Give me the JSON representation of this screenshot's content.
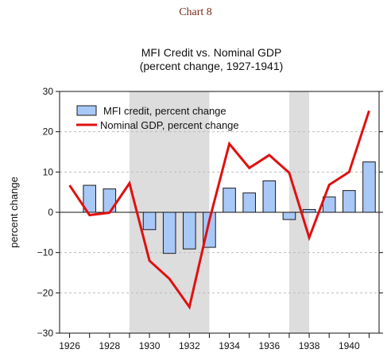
{
  "caption": "Chart 8",
  "chart_data": {
    "type": "bar",
    "title": "MFI Credit vs. Nominal GDP",
    "subtitle": "(percent change, 1927-1941)",
    "ylabel": "percent change",
    "xlabel": "",
    "xlim": [
      1925.5,
      1941.5
    ],
    "ylim": [
      -30,
      30
    ],
    "yticks": [
      -30,
      -20,
      -10,
      0,
      10,
      20,
      30
    ],
    "yticklabels": [
      "−30",
      "−20",
      "−10",
      "0",
      "10",
      "20",
      "30"
    ],
    "xticks": [
      1926,
      1928,
      1930,
      1932,
      1934,
      1936,
      1938,
      1940
    ],
    "xticklabels": [
      "1926",
      "1928",
      "1930",
      "1932",
      "1934",
      "1936",
      "1938",
      "1940"
    ],
    "shaded_periods": [
      [
        1929,
        1933
      ],
      [
        1937,
        1938
      ]
    ],
    "legend": "top-left",
    "grid": "horizontal dashed",
    "colors": {
      "bars": "#a8c8f8",
      "bar_edge": "#1a1a1a",
      "line": "#e01010",
      "shade": "#dddddd"
    },
    "series": [
      {
        "name": "MFI credit, percent change",
        "type": "bar",
        "x": [
          1927,
          1928,
          1929,
          1930,
          1931,
          1932,
          1933,
          1934,
          1935,
          1936,
          1937,
          1938,
          1939,
          1940,
          1941
        ],
        "values": [
          6.7,
          5.8,
          0,
          -4.3,
          -10.2,
          -9.1,
          -8.7,
          6.0,
          4.8,
          7.8,
          -1.8,
          0.7,
          3.8,
          5.4,
          12.5
        ]
      },
      {
        "name": "Nominal GDP, percent change",
        "type": "line",
        "x": [
          1926,
          1927,
          1928,
          1929,
          1930,
          1931,
          1932,
          1933,
          1934,
          1935,
          1936,
          1937,
          1938,
          1939,
          1940,
          1941
        ],
        "values": [
          6.7,
          -0.7,
          -0.1,
          7.2,
          -12.0,
          -16.5,
          -23.5,
          -2.0,
          17.0,
          11.0,
          14.2,
          9.8,
          -6.3,
          6.8,
          10.0,
          25.2
        ]
      }
    ]
  }
}
